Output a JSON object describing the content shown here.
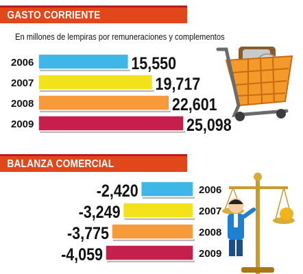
{
  "chart_data": [
    {
      "type": "bar",
      "orientation": "horizontal",
      "title": "GASTO CORRIENTE",
      "subtitle": "En millones de lempiras por remuneraciones y complementos",
      "categories": [
        "2006",
        "2007",
        "2008",
        "2009"
      ],
      "values": [
        15550,
        19717,
        22601,
        25098
      ],
      "value_labels": [
        "15,550",
        "19,717",
        "22,601",
        "25,098"
      ],
      "colors": [
        "#3fb6e8",
        "#f2e21c",
        "#f79a3a",
        "#c51f4c"
      ],
      "xlim": [
        0,
        25098
      ]
    },
    {
      "type": "bar",
      "orientation": "horizontal",
      "title": "BALANZA COMERCIAL",
      "categories": [
        "2006",
        "2007",
        "2008",
        "2009"
      ],
      "values": [
        -2420,
        -3249,
        -3775,
        -4059
      ],
      "value_labels": [
        "-2,420",
        "-3,249",
        "-3,775",
        "-4,059"
      ],
      "colors": [
        "#3fb6e8",
        "#f2e21c",
        "#f79a3a",
        "#c51f4c"
      ],
      "xlim": [
        -4059,
        0
      ]
    }
  ],
  "illustrations": [
    "shopping-cart-icon",
    "balance-scale-icon"
  ]
}
